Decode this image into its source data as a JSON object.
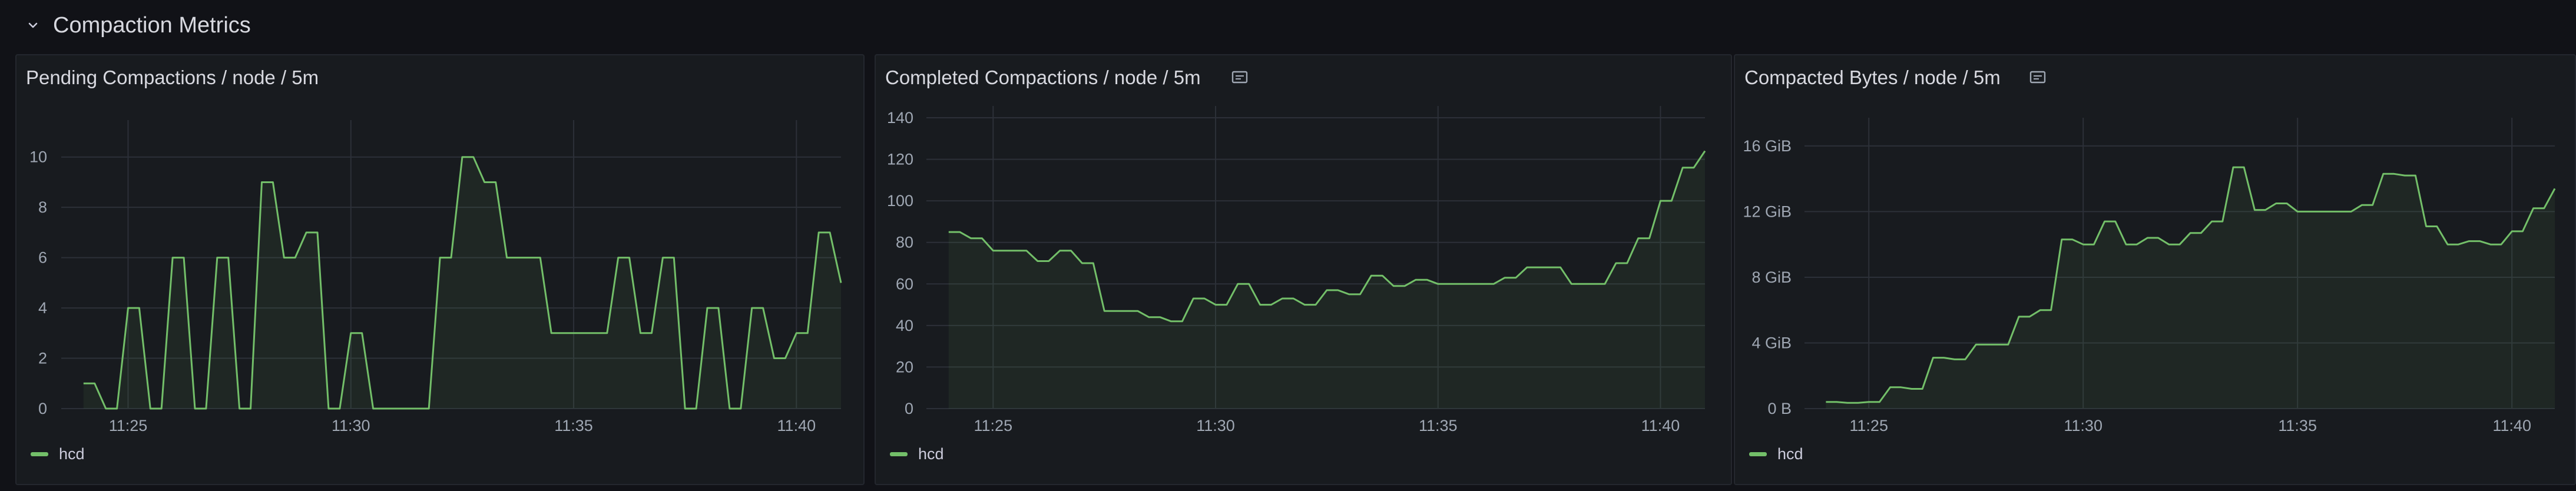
{
  "row": {
    "title": "Compaction Metrics",
    "icon": "chevron-down-icon"
  },
  "colors": {
    "series": "#73bf69",
    "fill": "#73bf69",
    "grid": "#2c3038",
    "text": "#9fa7b3"
  },
  "panels": [
    {
      "id": "pending",
      "title": "Pending Compactions / node / 5m",
      "info_icon": "",
      "legend": "hcd",
      "chart_data": {
        "type": "line",
        "title": "Pending Compactions / node / 5m",
        "xlabel": "",
        "ylabel": "",
        "x_ticks": [
          "11:25",
          "11:30",
          "11:35",
          "11:40"
        ],
        "y_ticks": [
          "0",
          "2",
          "4",
          "6",
          "8",
          "10"
        ],
        "ylim": [
          0,
          11
        ],
        "grid": true,
        "legend": "bottom-left",
        "series": [
          {
            "name": "hcd",
            "x": [
              "11:24:00",
              "11:24:15",
              "11:24:30",
              "11:24:45",
              "11:25:00",
              "11:25:15",
              "11:25:30",
              "11:25:45",
              "11:26:00",
              "11:26:15",
              "11:26:30",
              "11:26:45",
              "11:27:00",
              "11:27:15",
              "11:27:30",
              "11:27:45",
              "11:28:00",
              "11:28:15",
              "11:28:30",
              "11:28:45",
              "11:29:00",
              "11:29:15",
              "11:29:30",
              "11:29:45",
              "11:30:00",
              "11:30:15",
              "11:30:30",
              "11:30:45",
              "11:31:00",
              "11:31:15",
              "11:31:30",
              "11:31:45",
              "11:32:00",
              "11:32:15",
              "11:32:30",
              "11:32:45",
              "11:33:00",
              "11:33:15",
              "11:33:30",
              "11:33:45",
              "11:34:00",
              "11:34:15",
              "11:34:30",
              "11:34:45",
              "11:35:00",
              "11:35:15",
              "11:35:30",
              "11:35:45",
              "11:36:00",
              "11:36:15",
              "11:36:30",
              "11:36:45",
              "11:37:00",
              "11:37:15",
              "11:37:30",
              "11:37:45",
              "11:38:00",
              "11:38:15",
              "11:38:30",
              "11:38:45",
              "11:39:00",
              "11:39:15",
              "11:39:30",
              "11:39:45",
              "11:40:00",
              "11:40:15",
              "11:40:30",
              "11:40:45",
              "11:41:00"
            ],
            "y": [
              1,
              1,
              0,
              0,
              4,
              4,
              0,
              0,
              6,
              6,
              0,
              0,
              6,
              6,
              0,
              0,
              9,
              9,
              6,
              6,
              7,
              7,
              0,
              0,
              3,
              3,
              0,
              0,
              0,
              0,
              0,
              0,
              6,
              6,
              10,
              10,
              9,
              9,
              6,
              6,
              6,
              6,
              3,
              3,
              3,
              3,
              3,
              3,
              6,
              6,
              3,
              3,
              6,
              6,
              0,
              0,
              4,
              4,
              0,
              0,
              4,
              4,
              2,
              2,
              3,
              3,
              7,
              7,
              5
            ]
          }
        ]
      }
    },
    {
      "id": "completed",
      "title": "Completed Compactions / node / 5m",
      "info_icon": "info-icon",
      "legend": "hcd",
      "chart_data": {
        "type": "line",
        "title": "Completed Compactions / node / 5m",
        "xlabel": "",
        "ylabel": "",
        "x_ticks": [
          "11:25",
          "11:30",
          "11:35",
          "11:40"
        ],
        "y_ticks": [
          "0",
          "20",
          "40",
          "60",
          "80",
          "100",
          "120",
          "140"
        ],
        "ylim": [
          0,
          140
        ],
        "grid": true,
        "legend": "bottom-left",
        "series": [
          {
            "name": "hcd",
            "x": [
              "11:24:00",
              "11:24:15",
              "11:24:30",
              "11:24:45",
              "11:25:00",
              "11:25:15",
              "11:25:30",
              "11:25:45",
              "11:26:00",
              "11:26:15",
              "11:26:30",
              "11:26:45",
              "11:27:00",
              "11:27:15",
              "11:27:30",
              "11:27:45",
              "11:28:00",
              "11:28:15",
              "11:28:30",
              "11:28:45",
              "11:29:00",
              "11:29:15",
              "11:29:30",
              "11:29:45",
              "11:30:00",
              "11:30:15",
              "11:30:30",
              "11:30:45",
              "11:31:00",
              "11:31:15",
              "11:31:30",
              "11:31:45",
              "11:32:00",
              "11:32:15",
              "11:32:30",
              "11:32:45",
              "11:33:00",
              "11:33:15",
              "11:33:30",
              "11:33:45",
              "11:34:00",
              "11:34:15",
              "11:34:30",
              "11:34:45",
              "11:35:00",
              "11:35:15",
              "11:35:30",
              "11:35:45",
              "11:36:00",
              "11:36:15",
              "11:36:30",
              "11:36:45",
              "11:37:00",
              "11:37:15",
              "11:37:30",
              "11:37:45",
              "11:38:00",
              "11:38:15",
              "11:38:30",
              "11:38:45",
              "11:39:00",
              "11:39:15",
              "11:39:30",
              "11:39:45",
              "11:40:00",
              "11:40:15",
              "11:40:30",
              "11:40:45",
              "11:41:00"
            ],
            "y": [
              85,
              85,
              82,
              82,
              76,
              76,
              76,
              76,
              71,
              71,
              76,
              76,
              70,
              70,
              47,
              47,
              47,
              47,
              44,
              44,
              42,
              42,
              53,
              53,
              50,
              50,
              60,
              60,
              50,
              50,
              53,
              53,
              50,
              50,
              57,
              57,
              55,
              55,
              64,
              64,
              59,
              59,
              62,
              62,
              60,
              60,
              60,
              60,
              60,
              60,
              63,
              63,
              68,
              68,
              68,
              68,
              60,
              60,
              60,
              60,
              70,
              70,
              82,
              82,
              100,
              100,
              116,
              116,
              124
            ]
          }
        ]
      }
    },
    {
      "id": "bytes",
      "title": "Compacted Bytes / node / 5m",
      "info_icon": "info-icon",
      "legend": "hcd",
      "chart_data": {
        "type": "line",
        "title": "Compacted Bytes / node / 5m",
        "xlabel": "",
        "ylabel": "",
        "x_ticks": [
          "11:25",
          "11:30",
          "11:35",
          "11:40"
        ],
        "y_ticks": [
          "0 B",
          "4 GiB",
          "8 GiB",
          "12 GiB",
          "16 GiB"
        ],
        "y_unit": "GiB",
        "ylim": [
          0,
          17
        ],
        "grid": true,
        "legend": "bottom-left",
        "series": [
          {
            "name": "hcd",
            "x": [
              "11:24:00",
              "11:24:15",
              "11:24:30",
              "11:24:45",
              "11:25:00",
              "11:25:15",
              "11:25:30",
              "11:25:45",
              "11:26:00",
              "11:26:15",
              "11:26:30",
              "11:26:45",
              "11:27:00",
              "11:27:15",
              "11:27:30",
              "11:27:45",
              "11:28:00",
              "11:28:15",
              "11:28:30",
              "11:28:45",
              "11:29:00",
              "11:29:15",
              "11:29:30",
              "11:29:45",
              "11:30:00",
              "11:30:15",
              "11:30:30",
              "11:30:45",
              "11:31:00",
              "11:31:15",
              "11:31:30",
              "11:31:45",
              "11:32:00",
              "11:32:15",
              "11:32:30",
              "11:32:45",
              "11:33:00",
              "11:33:15",
              "11:33:30",
              "11:33:45",
              "11:34:00",
              "11:34:15",
              "11:34:30",
              "11:34:45",
              "11:35:00",
              "11:35:15",
              "11:35:30",
              "11:35:45",
              "11:36:00",
              "11:36:15",
              "11:36:30",
              "11:36:45",
              "11:37:00",
              "11:37:15",
              "11:37:30",
              "11:37:45",
              "11:38:00",
              "11:38:15",
              "11:38:30",
              "11:38:45",
              "11:39:00",
              "11:39:15",
              "11:39:30",
              "11:39:45",
              "11:40:00",
              "11:40:15",
              "11:40:30",
              "11:40:45",
              "11:41:00"
            ],
            "y": [
              0.4,
              0.4,
              0.35,
              0.35,
              0.4,
              0.4,
              1.3,
              1.3,
              1.2,
              1.2,
              3.1,
              3.1,
              3.0,
              3.0,
              3.9,
              3.9,
              3.9,
              3.9,
              5.6,
              5.6,
              6.0,
              6.0,
              10.3,
              10.3,
              10.0,
              10.0,
              11.4,
              11.4,
              10.0,
              10.0,
              10.4,
              10.4,
              10.0,
              10.0,
              10.7,
              10.7,
              11.4,
              11.4,
              14.7,
              14.7,
              12.1,
              12.1,
              12.5,
              12.5,
              12.0,
              12.0,
              12.0,
              12.0,
              12.0,
              12.0,
              12.4,
              12.4,
              14.3,
              14.3,
              14.2,
              14.2,
              11.1,
              11.1,
              10.0,
              10.0,
              10.2,
              10.2,
              10.0,
              10.0,
              10.8,
              10.8,
              12.2,
              12.2,
              13.4
            ]
          }
        ]
      }
    }
  ]
}
